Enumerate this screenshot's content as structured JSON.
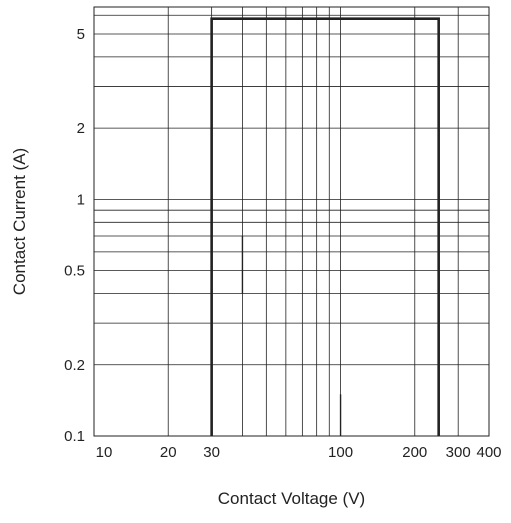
{
  "chart_data": {
    "type": "line",
    "xlabel": "Contact Voltage (V)",
    "ylabel": "Contact Current (A)",
    "x_scale": "log",
    "y_scale": "log",
    "xlim": [
      10,
      400
    ],
    "ylim": [
      0.1,
      6.5
    ],
    "grid": true,
    "x_ticks": [
      10,
      20,
      30,
      100,
      200,
      300,
      400
    ],
    "x_tick_labels": [
      "10",
      "20",
      "30",
      "100",
      "200",
      "300",
      "400"
    ],
    "y_ticks": [
      0.1,
      0.2,
      0.5,
      1,
      2,
      5
    ],
    "y_tick_labels": [
      "0.1",
      "0.2",
      "0.5",
      "1",
      "2",
      "5"
    ],
    "x_grid": [
      10,
      20,
      30,
      40,
      50,
      60,
      70,
      80,
      90,
      100,
      200,
      300,
      400
    ],
    "y_grid": [
      0.1,
      0.2,
      0.3,
      0.4,
      0.5,
      0.6,
      0.7,
      0.8,
      0.9,
      1,
      2,
      3,
      4,
      5,
      6
    ],
    "series": [
      {
        "points": [
          [
            30,
            0.1
          ],
          [
            30,
            5.8
          ],
          [
            250,
            5.8
          ],
          [
            250,
            0.1
          ]
        ]
      }
    ],
    "extra_lines": [
      {
        "x": [
          40,
          40
        ],
        "y": [
          0.4,
          0.7
        ]
      },
      {
        "x": [
          100,
          100
        ],
        "y": [
          0.1,
          0.15
        ]
      }
    ],
    "line_color": "#222222",
    "grid_color": "#222222"
  }
}
